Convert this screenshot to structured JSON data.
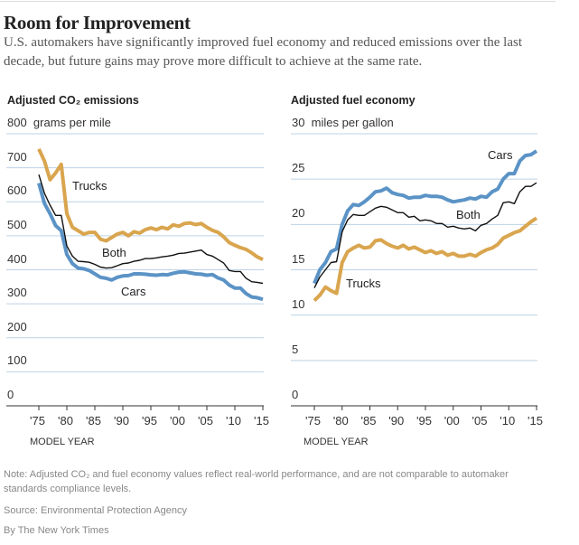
{
  "header": {
    "title": "Room for Improvement",
    "subtitle": "U.S. automakers have significantly improved fuel economy and reduced emissions over the last decade, but future gains may prove more difficult to achieve at the same rate."
  },
  "footer": {
    "note": "Note: Adjusted CO₂ and fuel economy values reflect real-world performance, and are not comparable to automaker standards compliance levels.",
    "source": "Source: Environmental Protection Agency",
    "credit": "By The New York Times"
  },
  "colors": {
    "cars": "#5b93c6",
    "trucks": "#d9a54e",
    "both": "#111111",
    "grid": "#bcd3e6"
  },
  "chart_data": [
    {
      "type": "line",
      "title": "Adjusted CO₂ emissions",
      "ylabel": "grams per mile",
      "xlabel": "MODEL YEAR",
      "ylim": [
        0,
        800
      ],
      "yticks": [
        "800",
        "700",
        "600",
        "500",
        "400",
        "300",
        "200",
        "100",
        "0"
      ],
      "xticks": [
        "'75",
        "'80",
        "'85",
        "'90",
        "'95",
        "'00",
        "'05",
        "'10",
        "'15"
      ],
      "x_start": 1975,
      "x_end": 2015,
      "grid": true,
      "series": [
        {
          "name": "Trucks",
          "values": [
            755,
            720,
            665,
            685,
            710,
            565,
            525,
            515,
            505,
            510,
            510,
            490,
            485,
            495,
            505,
            510,
            500,
            512,
            508,
            518,
            523,
            518,
            525,
            520,
            532,
            528,
            536,
            538,
            533,
            536,
            525,
            516,
            510,
            497,
            480,
            472,
            465,
            460,
            450,
            438,
            430
          ]
        },
        {
          "name": "Both",
          "values": [
            680,
            625,
            590,
            560,
            560,
            470,
            440,
            425,
            424,
            422,
            416,
            408,
            405,
            406,
            412,
            418,
            420,
            425,
            428,
            433,
            433,
            435,
            438,
            440,
            443,
            448,
            449,
            452,
            455,
            458,
            445,
            440,
            430,
            420,
            398,
            395,
            395,
            375,
            365,
            363,
            360
          ]
        },
        {
          "name": "Cars",
          "values": [
            655,
            595,
            565,
            530,
            515,
            445,
            418,
            405,
            403,
            398,
            388,
            378,
            375,
            370,
            378,
            382,
            383,
            388,
            388,
            387,
            385,
            384,
            386,
            385,
            390,
            393,
            394,
            391,
            388,
            387,
            384,
            386,
            376,
            370,
            355,
            346,
            346,
            330,
            320,
            318,
            313
          ]
        }
      ]
    },
    {
      "type": "line",
      "title": "Adjusted fuel economy",
      "ylabel": "miles per gallon",
      "xlabel": "MODEL YEAR",
      "ylim": [
        0,
        30
      ],
      "yticks": [
        "30",
        "25",
        "20",
        "15",
        "10",
        "5",
        "0"
      ],
      "xticks": [
        "'75",
        "'80",
        "'85",
        "'90",
        "'95",
        "'00",
        "'05",
        "'10",
        "'15"
      ],
      "x_start": 1975,
      "x_end": 2015,
      "grid": true,
      "series": [
        {
          "name": "Cars",
          "values": [
            13.5,
            15,
            15.8,
            17,
            17.3,
            20,
            21.5,
            22.2,
            22.1,
            22.5,
            23,
            23.6,
            23.7,
            24,
            23.5,
            23.3,
            23.2,
            22.9,
            23,
            23,
            23.2,
            23.1,
            23.1,
            23,
            22.7,
            22.5,
            22.6,
            22.7,
            22.9,
            22.8,
            23.1,
            23,
            23.6,
            23.9,
            25,
            25.6,
            25.6,
            27,
            27.6,
            27.7,
            28.1
          ]
        },
        {
          "name": "Both",
          "values": [
            13,
            14.2,
            15,
            15.8,
            15.9,
            19.2,
            20.5,
            21.1,
            21,
            21,
            21.4,
            21.8,
            22,
            21.9,
            21.6,
            21.3,
            21.3,
            20.8,
            20.9,
            20.4,
            20.5,
            20.4,
            20.1,
            20.1,
            19.7,
            19.8,
            19.6,
            19.5,
            19.6,
            19.3,
            19.9,
            20.1,
            20.6,
            21,
            22.4,
            22.5,
            22.3,
            23.6,
            24.2,
            24.2,
            24.6
          ]
        },
        {
          "name": "Trucks",
          "values": [
            11.6,
            12.2,
            13.1,
            12.7,
            12.4,
            15.8,
            17,
            17.4,
            17.7,
            17.4,
            17.5,
            18.2,
            18.3,
            17.9,
            17.6,
            17.4,
            17.7,
            17.3,
            17.5,
            17.2,
            16.9,
            17.1,
            16.8,
            17,
            16.6,
            16.8,
            16.5,
            16.5,
            16.7,
            16.5,
            16.9,
            17.2,
            17.4,
            17.8,
            18.5,
            18.8,
            19.1,
            19.3,
            19.8,
            20.3,
            20.7
          ]
        }
      ]
    }
  ]
}
